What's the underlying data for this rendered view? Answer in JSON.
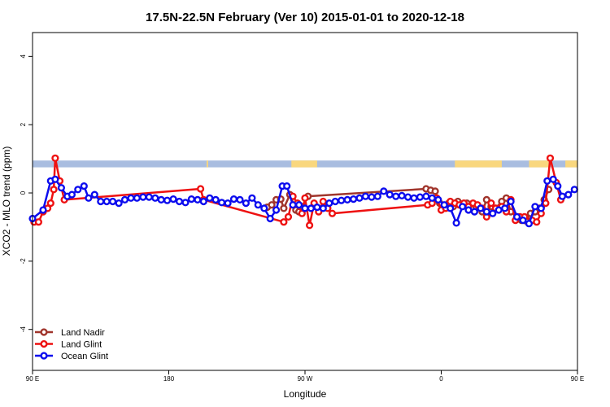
{
  "chart_data": {
    "type": "line",
    "title": "17.5N-22.5N February (Ver 10)   2015-01-01 to 2020-12-18",
    "xlabel": "Longitude",
    "ylabel": "XCO2 - MLO trend (ppm)",
    "xlim": [
      90,
      450
    ],
    "ylim": [
      -5.2,
      4.7
    ],
    "x_ticks": [
      {
        "value": 90,
        "label": "90 E"
      },
      {
        "value": 180,
        "label": "180"
      },
      {
        "value": 270,
        "label": "90 W"
      },
      {
        "value": 360,
        "label": "0"
      },
      {
        "value": 450,
        "label": "90 E"
      },
      {
        "value": 540,
        "label": "180"
      }
    ],
    "y_ticks": [
      -4,
      -2,
      0,
      2,
      4
    ],
    "grid": false,
    "legend_position": "bottom-left",
    "land_mask": {
      "y_range": [
        0.75,
        0.95
      ],
      "ocean_color": "#a9bde0",
      "land_color": "#f9d77e",
      "land_segments": [
        [
          205,
          206
        ],
        [
          261,
          278
        ],
        [
          369,
          400
        ],
        [
          418,
          431
        ],
        [
          442,
          450
        ],
        [
          461,
          462
        ]
      ]
    },
    "series": [
      {
        "name": "Land Nadir",
        "color": "#a0352c",
        "points": [
          [
            245,
            -0.42
          ],
          [
            248,
            -0.35
          ],
          [
            251,
            -0.2
          ],
          [
            254,
            -0.18
          ],
          [
            256,
            -0.45
          ],
          [
            260,
            -0.05
          ],
          [
            264,
            -0.5
          ],
          [
            266,
            -0.55
          ],
          [
            268,
            -0.4
          ],
          [
            272,
            -0.1
          ],
          [
            350,
            0.12
          ],
          [
            353,
            0.08
          ],
          [
            356,
            0.05
          ],
          [
            359,
            -0.3
          ],
          [
            362,
            -0.4
          ],
          [
            365,
            -0.3
          ],
          [
            368,
            -0.4
          ],
          [
            371,
            -0.25
          ],
          [
            374,
            -0.35
          ],
          [
            377,
            -0.3
          ],
          [
            380,
            -0.45
          ],
          [
            383,
            -0.4
          ],
          [
            387,
            -0.55
          ],
          [
            390,
            -0.2
          ],
          [
            393,
            -0.4
          ],
          [
            396,
            -0.45
          ],
          [
            400,
            -0.25
          ],
          [
            403,
            -0.15
          ],
          [
            406,
            -0.55
          ],
          [
            410,
            -0.7
          ],
          [
            413,
            -0.8
          ],
          [
            416,
            -0.82
          ],
          [
            419,
            -0.6
          ],
          [
            422,
            -0.55
          ],
          [
            425,
            -0.45
          ],
          [
            428,
            -0.2
          ],
          [
            431,
            0.1
          ]
        ]
      },
      {
        "name": "Land Glint",
        "color": "#ee1111",
        "points": [
          [
            91,
            -0.85
          ],
          [
            94,
            -0.85
          ],
          [
            97,
            -0.55
          ],
          [
            100,
            -0.45
          ],
          [
            102,
            -0.3
          ],
          [
            104,
            0.1
          ],
          [
            105,
            1.02
          ],
          [
            108,
            0.35
          ],
          [
            111,
            -0.2
          ],
          [
            201,
            0.12
          ],
          [
            203,
            -0.2
          ],
          [
            256,
            -0.85
          ],
          [
            259,
            -0.7
          ],
          [
            262,
            -0.1
          ],
          [
            265,
            -0.3
          ],
          [
            268,
            -0.6
          ],
          [
            270,
            -0.15
          ],
          [
            273,
            -0.95
          ],
          [
            276,
            -0.3
          ],
          [
            279,
            -0.55
          ],
          [
            282,
            -0.25
          ],
          [
            285,
            -0.45
          ],
          [
            288,
            -0.6
          ],
          [
            351,
            -0.35
          ],
          [
            354,
            -0.3
          ],
          [
            357,
            -0.15
          ],
          [
            360,
            -0.5
          ],
          [
            363,
            -0.45
          ],
          [
            366,
            -0.25
          ],
          [
            369,
            -0.3
          ],
          [
            372,
            -0.35
          ],
          [
            375,
            -0.3
          ],
          [
            378,
            -0.4
          ],
          [
            381,
            -0.3
          ],
          [
            384,
            -0.35
          ],
          [
            387,
            -0.45
          ],
          [
            390,
            -0.7
          ],
          [
            393,
            -0.3
          ],
          [
            396,
            -0.45
          ],
          [
            400,
            -0.4
          ],
          [
            403,
            -0.55
          ],
          [
            406,
            -0.2
          ],
          [
            409,
            -0.8
          ],
          [
            412,
            -0.7
          ],
          [
            415,
            -0.7
          ],
          [
            420,
            -0.8
          ],
          [
            423,
            -0.85
          ],
          [
            426,
            -0.6
          ],
          [
            429,
            -0.3
          ],
          [
            432,
            1.02
          ],
          [
            436,
            0.3
          ],
          [
            439,
            -0.2
          ]
        ]
      },
      {
        "name": "Ocean Glint",
        "color": "#0c0cee",
        "points": [
          [
            90,
            -0.75
          ],
          [
            97,
            -0.5
          ],
          [
            102,
            0.35
          ],
          [
            105,
            0.4
          ],
          [
            109,
            0.15
          ],
          [
            113,
            -0.1
          ],
          [
            116,
            -0.05
          ],
          [
            120,
            0.1
          ],
          [
            124,
            0.2
          ],
          [
            127,
            -0.15
          ],
          [
            131,
            -0.05
          ],
          [
            135,
            -0.25
          ],
          [
            139,
            -0.25
          ],
          [
            143,
            -0.25
          ],
          [
            147,
            -0.3
          ],
          [
            151,
            -0.2
          ],
          [
            155,
            -0.15
          ],
          [
            159,
            -0.15
          ],
          [
            163,
            -0.12
          ],
          [
            167,
            -0.12
          ],
          [
            171,
            -0.15
          ],
          [
            175,
            -0.2
          ],
          [
            179,
            -0.22
          ],
          [
            183,
            -0.18
          ],
          [
            187,
            -0.25
          ],
          [
            191,
            -0.28
          ],
          [
            195,
            -0.18
          ],
          [
            199,
            -0.2
          ],
          [
            203,
            -0.25
          ],
          [
            207,
            -0.15
          ],
          [
            211,
            -0.2
          ],
          [
            215,
            -0.28
          ],
          [
            219,
            -0.3
          ],
          [
            223,
            -0.18
          ],
          [
            227,
            -0.2
          ],
          [
            231,
            -0.3
          ],
          [
            235,
            -0.15
          ],
          [
            239,
            -0.35
          ],
          [
            243,
            -0.45
          ],
          [
            247,
            -0.75
          ],
          [
            251,
            -0.5
          ],
          [
            255,
            0.2
          ],
          [
            258,
            0.2
          ],
          [
            262,
            -0.35
          ],
          [
            266,
            -0.35
          ],
          [
            270,
            -0.45
          ],
          [
            274,
            -0.45
          ],
          [
            278,
            -0.42
          ],
          [
            282,
            -0.45
          ],
          [
            286,
            -0.3
          ],
          [
            290,
            -0.25
          ],
          [
            294,
            -0.22
          ],
          [
            298,
            -0.2
          ],
          [
            302,
            -0.18
          ],
          [
            306,
            -0.15
          ],
          [
            310,
            -0.1
          ],
          [
            314,
            -0.12
          ],
          [
            318,
            -0.1
          ],
          [
            322,
            0.05
          ],
          [
            326,
            -0.05
          ],
          [
            330,
            -0.1
          ],
          [
            334,
            -0.08
          ],
          [
            338,
            -0.12
          ],
          [
            342,
            -0.15
          ],
          [
            346,
            -0.12
          ],
          [
            350,
            -0.1
          ],
          [
            354,
            -0.15
          ],
          [
            358,
            -0.2
          ],
          [
            362,
            -0.35
          ],
          [
            366,
            -0.45
          ],
          [
            370,
            -0.88
          ],
          [
            374,
            -0.4
          ],
          [
            378,
            -0.5
          ],
          [
            382,
            -0.55
          ],
          [
            386,
            -0.45
          ],
          [
            390,
            -0.55
          ],
          [
            394,
            -0.6
          ],
          [
            398,
            -0.5
          ],
          [
            402,
            -0.45
          ],
          [
            406,
            -0.25
          ],
          [
            410,
            -0.7
          ],
          [
            414,
            -0.8
          ],
          [
            418,
            -0.9
          ],
          [
            422,
            -0.4
          ],
          [
            426,
            -0.45
          ],
          [
            430,
            0.35
          ],
          [
            434,
            0.4
          ],
          [
            437,
            0.2
          ],
          [
            440,
            -0.1
          ],
          [
            444,
            -0.05
          ],
          [
            448,
            0.1
          ],
          [
            452,
            0.2
          ],
          [
            456,
            -0.15
          ],
          [
            460,
            -0.05
          ],
          [
            464,
            -0.2
          ],
          [
            468,
            -0.25
          ],
          [
            472,
            -0.25
          ],
          [
            476,
            -0.3
          ],
          [
            480,
            -0.2
          ],
          [
            484,
            -0.15
          ]
        ]
      }
    ]
  }
}
